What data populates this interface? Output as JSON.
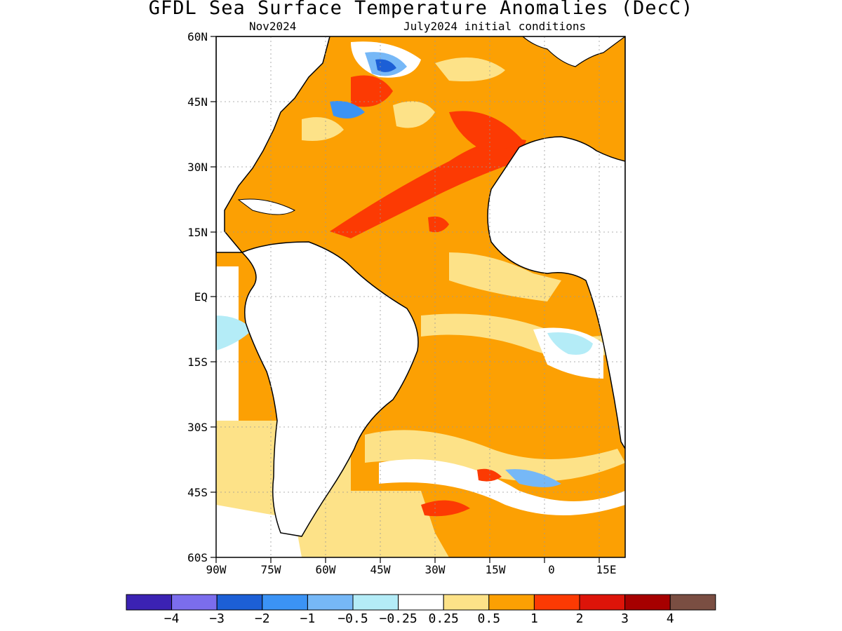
{
  "title": "GFDL Sea Surface Temperature Anomalies (DecC)",
  "subtitle_left": "Nov2024",
  "subtitle_right": "July2024 initial conditions",
  "lat_labels": [
    "60N",
    "45N",
    "30N",
    "15N",
    "EQ",
    "15S",
    "30S",
    "45S",
    "60S"
  ],
  "lon_labels": [
    "90W",
    "75W",
    "60W",
    "45W",
    "30W",
    "15W",
    "0",
    "15E"
  ],
  "colorbar": {
    "colors": [
      "#3b22b3",
      "#7b6ded",
      "#1c5fd6",
      "#3b93f5",
      "#76b8f7",
      "#b4ecf7",
      "#ffffff",
      "#fde288",
      "#fca003",
      "#fc3a03",
      "#dd1409",
      "#a60000",
      "#7a4e42"
    ],
    "labels": [
      "−4",
      "−3",
      "−2",
      "−1",
      "−0.5",
      "−0.25",
      "0.25",
      "0.5",
      "1",
      "2",
      "3",
      "4"
    ]
  },
  "colors": {
    "land": "#ffffff",
    "ocean_warm": "#fca003",
    "ocean_mild": "#fde288",
    "ocean_hot": "#fc3a03"
  }
}
